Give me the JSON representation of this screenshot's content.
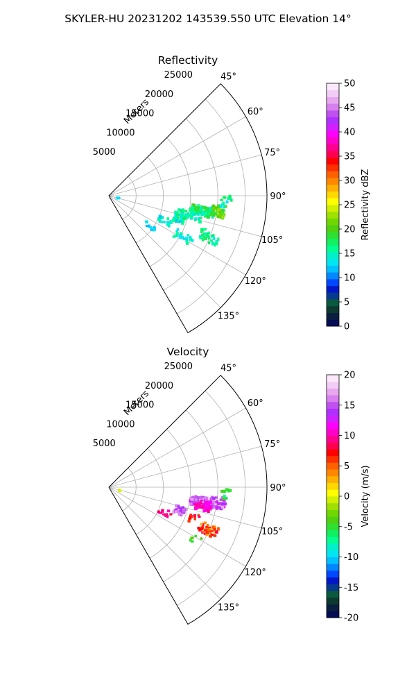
{
  "figure_title": "SKYLER-HU  20231202  143539.550 UTC Elevation 14°",
  "chart_data": [
    {
      "type": "polar-sector",
      "title": "Reflectivity",
      "radial_label": "Meters",
      "radial_ticks": [
        5000,
        10000,
        15000,
        20000,
        25000
      ],
      "radial_tick_labels": [
        "5000",
        "10000",
        "15000",
        "20000",
        "25000"
      ],
      "rlim": [
        0,
        29000
      ],
      "theta_range_deg": [
        45,
        150
      ],
      "angle_ticks_deg": [
        45,
        60,
        75,
        90,
        105,
        120,
        135
      ],
      "angle_tick_labels": [
        "45°",
        "60°",
        "75°",
        "90°",
        "105°",
        "120°",
        "135°"
      ],
      "grid": true,
      "colorbar": {
        "label": "Reflectivity dBZ",
        "range": [
          0,
          50
        ],
        "ticks": [
          0,
          5,
          10,
          15,
          20,
          25,
          30,
          35,
          40,
          45,
          50
        ],
        "tick_labels": [
          "0",
          "5",
          "10",
          "15",
          "20",
          "25",
          "30",
          "35",
          "40",
          "45",
          "50"
        ],
        "colors": [
          "#040c54",
          "#0a1f3f",
          "#0d3a2e",
          "#0a5a3e",
          "#063a8e",
          "#0018c8",
          "#0048ff",
          "#0088ff",
          "#00c0ff",
          "#00e6f0",
          "#00f0c8",
          "#00ff90",
          "#10f060",
          "#30e030",
          "#50d010",
          "#70d800",
          "#a0e000",
          "#d0f000",
          "#ffff00",
          "#ffd800",
          "#ffb000",
          "#ff8800",
          "#ff6000",
          "#ff3000",
          "#ff0000",
          "#ff0050",
          "#ff0090",
          "#ff00c8",
          "#ff00ff",
          "#d020ff",
          "#b030ff",
          "#c050f0",
          "#d880f0",
          "#e8a8f0",
          "#f4cdf6",
          "#fde8fb"
        ]
      },
      "echo_clusters": [
        {
          "theta": 99,
          "r": [
            15000,
            19500
          ],
          "value_range": [
            14,
            20
          ],
          "count": 110
        },
        {
          "theta": 98,
          "r": [
            19000,
            21500
          ],
          "value_range": [
            17,
            23
          ],
          "count": 50
        },
        {
          "theta": 103,
          "r": [
            12500,
            17500
          ],
          "value_range": [
            13,
            18
          ],
          "count": 40
        },
        {
          "theta": 108,
          "r": [
            12500,
            14500
          ],
          "value_range": [
            12,
            18
          ],
          "count": 30
        },
        {
          "theta": 114,
          "r": [
            10000,
            12500
          ],
          "value_range": [
            12,
            16
          ],
          "count": 20
        },
        {
          "theta": 112,
          "r": [
            18000,
            22000
          ],
          "value_range": [
            13,
            18
          ],
          "count": 35
        },
        {
          "theta": 119,
          "r": [
            14000,
            17500
          ],
          "value_range": [
            12,
            17
          ],
          "count": 18
        },
        {
          "theta": 93,
          "r": [
            20500,
            22500
          ],
          "value_range": [
            13,
            18
          ],
          "count": 15
        },
        {
          "theta": 126,
          "r": [
            8000,
            10500
          ],
          "value_range": [
            11,
            14
          ],
          "count": 8
        },
        {
          "theta": 104,
          "r": [
            1500,
            2500
          ],
          "value_range": [
            12,
            14
          ],
          "count": 3
        }
      ]
    },
    {
      "type": "polar-sector",
      "title": "Velocity",
      "radial_label": "Meters",
      "radial_ticks": [
        5000,
        10000,
        15000,
        20000,
        25000
      ],
      "radial_tick_labels": [
        "5000",
        "10000",
        "15000",
        "20000",
        "25000"
      ],
      "rlim": [
        0,
        29000
      ],
      "theta_range_deg": [
        45,
        150
      ],
      "angle_ticks_deg": [
        45,
        60,
        75,
        90,
        105,
        120,
        135
      ],
      "angle_tick_labels": [
        "45°",
        "60°",
        "75°",
        "90°",
        "105°",
        "120°",
        "135°"
      ],
      "grid": true,
      "colorbar": {
        "label": "Velocity (m/s)",
        "range": [
          -20,
          20
        ],
        "ticks": [
          -20,
          -15,
          -10,
          -5,
          0,
          5,
          10,
          15,
          20
        ],
        "tick_labels": [
          "-20",
          "-15",
          "-10",
          "-5",
          "0",
          "5",
          "10",
          "15",
          "20"
        ],
        "colors": [
          "#040c54",
          "#0a1f3f",
          "#0d3a2e",
          "#0a5a3e",
          "#063a8e",
          "#0018c8",
          "#0048ff",
          "#0088ff",
          "#00c0ff",
          "#00e6f0",
          "#00f0c8",
          "#00ff90",
          "#10f060",
          "#30e030",
          "#50d010",
          "#70d800",
          "#a0e000",
          "#d0f000",
          "#ffff00",
          "#ffd800",
          "#ffb000",
          "#ff8800",
          "#ff6000",
          "#ff3000",
          "#ff0000",
          "#ff0050",
          "#ff0090",
          "#ff00c8",
          "#ff00ff",
          "#d020ff",
          "#b030ff",
          "#c050f0",
          "#d880f0",
          "#e8a8f0",
          "#f4cdf6",
          "#fde8fb"
        ]
      },
      "echo_clusters": [
        {
          "theta": 99,
          "r": [
            15000,
            19500
          ],
          "value_range": [
            13,
            17
          ],
          "count": 110
        },
        {
          "theta": 98,
          "r": [
            19000,
            21500
          ],
          "value_range": [
            12,
            17
          ],
          "count": 50
        },
        {
          "theta": 101,
          "r": [
            16000,
            19000
          ],
          "value_range": [
            9,
            12
          ],
          "count": 40
        },
        {
          "theta": 108,
          "r": [
            12500,
            14500
          ],
          "value_range": [
            13,
            17
          ],
          "count": 30
        },
        {
          "theta": 113,
          "r": [
            18000,
            21500
          ],
          "value_range": [
            3,
            10
          ],
          "count": 40
        },
        {
          "theta": 114,
          "r": [
            10000,
            12500
          ],
          "value_range": [
            8,
            12
          ],
          "count": 12
        },
        {
          "theta": 110,
          "r": [
            15500,
            17500
          ],
          "value_range": [
            5,
            9
          ],
          "count": 10
        },
        {
          "theta": 93,
          "r": [
            20500,
            22500
          ],
          "value_range": [
            -7,
            -4
          ],
          "count": 10
        },
        {
          "theta": 121,
          "r": [
            17500,
            19500
          ],
          "value_range": [
            -6,
            -2
          ],
          "count": 6
        },
        {
          "theta": 106,
          "r": [
            1500,
            2500
          ],
          "value_range": [
            -1,
            2
          ],
          "count": 3
        }
      ]
    }
  ]
}
